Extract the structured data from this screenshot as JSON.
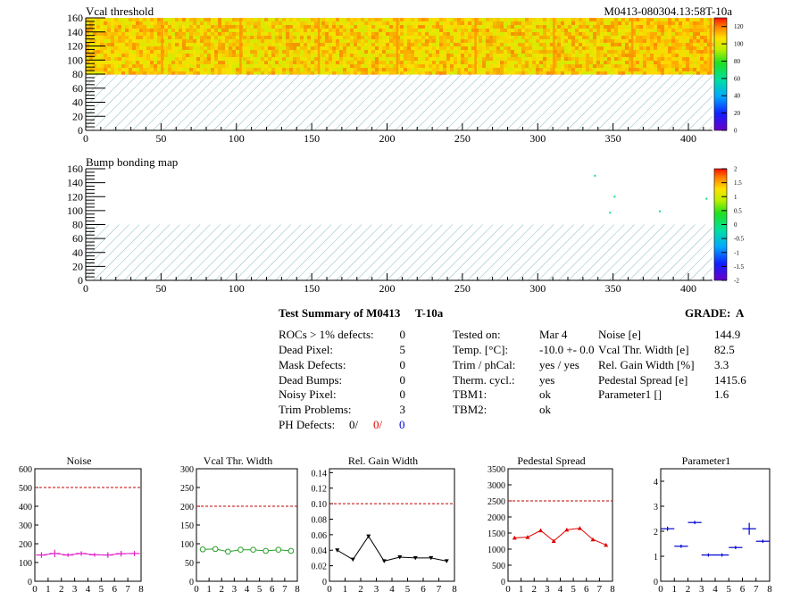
{
  "header": {
    "module_id": "M0413-080304.13:58T-10a"
  },
  "maps": [
    {
      "id": "vcal",
      "title": "Vcal threshold",
      "x_ticks": [
        "0",
        "50",
        "100",
        "150",
        "200",
        "250",
        "300",
        "350",
        "400"
      ],
      "y_ticks": [
        "0",
        "20",
        "40",
        "60",
        "80",
        "100",
        "120",
        "140",
        "160"
      ],
      "palette_ticks": [
        "0",
        "20",
        "40",
        "60",
        "80",
        "100",
        "120"
      ]
    },
    {
      "id": "bump",
      "title": "Bump bonding map",
      "x_ticks": [
        "0",
        "50",
        "100",
        "150",
        "200",
        "250",
        "300",
        "350",
        "400"
      ],
      "y_ticks": [
        "0",
        "20",
        "40",
        "60",
        "80",
        "100",
        "120",
        "140",
        "160"
      ],
      "palette_ticks": [
        "-2",
        "-1.5",
        "-1",
        "-0.5",
        "0",
        "0.5",
        "1",
        "1.5",
        "2"
      ]
    }
  ],
  "summary": {
    "title": "Test Summary of M0413",
    "temp_tag": "T-10a",
    "grade_label": "GRADE:",
    "grade_value": "A",
    "left": [
      {
        "label": "ROCs > 1% defects:",
        "value": "0"
      },
      {
        "label": "Dead Pixel:",
        "value": "5"
      },
      {
        "label": "Mask Defects:",
        "value": "0"
      },
      {
        "label": "Dead Bumps:",
        "value": "0"
      },
      {
        "label": "Noisy Pixel:",
        "value": "0"
      },
      {
        "label": "Trim Problems:",
        "value": "3"
      }
    ],
    "ph_defects": {
      "label": "PH Defects:",
      "v1": "0/",
      "v2": "0/",
      "v3": "0"
    },
    "middle": [
      {
        "label": "Tested on:",
        "value": "Mar 4"
      },
      {
        "label": "Temp. [°C]:",
        "value": "-10.0 +- 0.0"
      },
      {
        "label": "Trim / phCal:",
        "value": "yes / yes"
      },
      {
        "label": "Therm. cycl.:",
        "value": "yes"
      },
      {
        "label": "TBM1:",
        "value": "ok"
      },
      {
        "label": "TBM2:",
        "value": "ok"
      }
    ],
    "right": [
      {
        "label": "Noise [e]",
        "value": "144.9"
      },
      {
        "label": "Vcal Thr. Width [e]",
        "value": "82.5"
      },
      {
        "label": "Rel. Gain Width [%]",
        "value": "3.3"
      },
      {
        "label": "Pedestal Spread [e]",
        "value": "1415.6"
      },
      {
        "label": "Parameter1 []",
        "value": "1.6"
      }
    ]
  },
  "colors": {
    "noise": "#e020c8",
    "vcal": "#28a028",
    "gain": "#000000",
    "pedestal": "#e00000",
    "parameter": "#0000d0",
    "limit": "#c00000",
    "hatch": "#88b8c0"
  },
  "chart_data": [
    {
      "type": "heatmap",
      "title": "Vcal threshold",
      "xlim": [
        0,
        416
      ],
      "ylim": [
        0,
        160
      ],
      "zlim": [
        0,
        130
      ],
      "filled_rows": [
        80,
        160
      ],
      "dense_region_value": "about 90-120 (yellow-orange)",
      "column_values_approx": [
        {
          "x_range": [
            0,
            52
          ],
          "z": 105
        },
        {
          "x_range": [
            52,
            104
          ],
          "z": 103
        },
        {
          "x_range": [
            104,
            156
          ],
          "z": 102
        },
        {
          "x_range": [
            156,
            208
          ],
          "z": 104
        },
        {
          "x_range": [
            208,
            260
          ],
          "z": 105
        },
        {
          "x_range": [
            260,
            312
          ],
          "z": 102
        },
        {
          "x_range": [
            312,
            364
          ],
          "z": 103
        },
        {
          "x_range": [
            364,
            416
          ],
          "z": 108
        }
      ],
      "palette": "rainbow"
    },
    {
      "type": "heatmap",
      "title": "Bump bonding map",
      "xlim": [
        0,
        416
      ],
      "ylim": [
        0,
        160
      ],
      "zlim": [
        -2,
        2
      ],
      "points": [
        {
          "x": 338,
          "y": 150,
          "z": 0
        },
        {
          "x": 351,
          "y": 120,
          "z": 0
        },
        {
          "x": 348,
          "y": 97,
          "z": 0
        },
        {
          "x": 381,
          "y": 99,
          "z": 0
        },
        {
          "x": 412,
          "y": 117,
          "z": 0
        }
      ],
      "palette": "rainbow"
    },
    {
      "type": "line",
      "title": "Noise",
      "x": [
        0.5,
        1.5,
        2.5,
        3.5,
        4.5,
        5.5,
        6.5,
        7.5
      ],
      "values": [
        140,
        148,
        140,
        148,
        141,
        140,
        147,
        148
      ],
      "errors": [
        15,
        20,
        10,
        12,
        10,
        15,
        15,
        14
      ],
      "xlim": [
        0,
        8
      ],
      "ylim": [
        0,
        600
      ],
      "limit": 500,
      "marker": "plus"
    },
    {
      "type": "line",
      "title": "Vcal Thr. Width",
      "x": [
        0.5,
        1.5,
        2.5,
        3.5,
        4.5,
        5.5,
        6.5,
        7.5
      ],
      "values": [
        85,
        86,
        79,
        84,
        84,
        81,
        84,
        81
      ],
      "xlim": [
        0,
        8
      ],
      "ylim": [
        0,
        300
      ],
      "limit": 200,
      "marker": "circle"
    },
    {
      "type": "line",
      "title": "Rel. Gain Width",
      "x": [
        0.5,
        1.5,
        2.5,
        3.5,
        4.5,
        5.5,
        6.5,
        7.5
      ],
      "values": [
        0.04,
        0.028,
        0.058,
        0.026,
        0.031,
        0.03,
        0.03,
        0.026
      ],
      "xlim": [
        0,
        8
      ],
      "ylim": [
        0,
        0.145
      ],
      "limit": 0.1,
      "marker": "triangle-down"
    },
    {
      "type": "line",
      "title": "Pedestal Spread",
      "x": [
        0.5,
        1.5,
        2.5,
        3.5,
        4.5,
        5.5,
        6.5,
        7.5
      ],
      "values": [
        1350,
        1370,
        1580,
        1250,
        1600,
        1650,
        1300,
        1130
      ],
      "xlim": [
        0,
        8
      ],
      "ylim": [
        0,
        3500
      ],
      "limit": 2500,
      "marker": "triangle-up"
    },
    {
      "type": "scatter",
      "title": "Parameter1",
      "x": [
        0.5,
        1.5,
        2.5,
        3.5,
        4.5,
        5.5,
        6.5,
        7.5
      ],
      "values": [
        2.1,
        1.4,
        2.35,
        1.05,
        1.05,
        1.35,
        2.1,
        1.6
      ],
      "errors": [
        0.05,
        0.03,
        0.03,
        0.03,
        0.03,
        0.03,
        0.2,
        0.03
      ],
      "xlim": [
        0,
        8
      ],
      "ylim": [
        0,
        4.5
      ],
      "marker": "cross"
    }
  ]
}
